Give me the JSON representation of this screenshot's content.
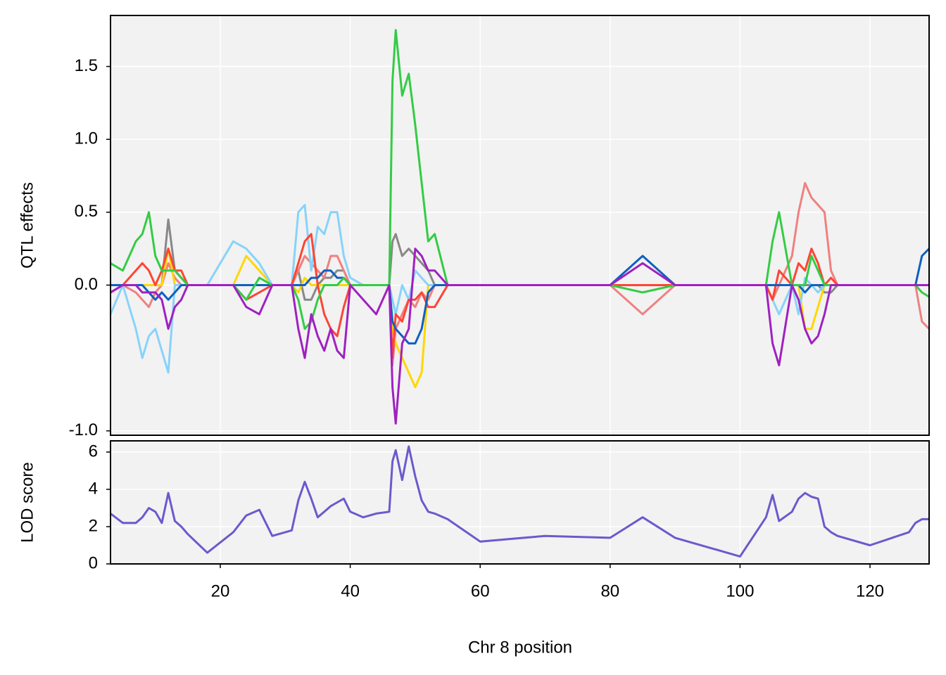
{
  "chart_data": [
    {
      "type": "line",
      "ylabel": "QTL effects",
      "x": [
        3.1,
        5,
        7,
        8,
        9,
        10,
        11,
        12,
        13,
        14,
        15,
        18,
        22,
        24,
        26,
        28,
        31,
        32,
        33,
        34,
        35,
        36,
        37,
        38,
        39,
        40,
        42,
        44,
        46,
        46.5,
        47,
        48,
        49,
        50,
        51,
        52,
        53,
        55,
        60,
        70,
        80,
        85,
        90,
        100,
        104,
        105,
        106,
        108,
        109,
        110,
        111,
        112,
        113,
        114,
        115,
        120,
        126,
        127,
        128,
        129.1
      ],
      "xlim": [
        3.1,
        129.1
      ],
      "ylim": [
        -1.03,
        1.85
      ],
      "yticks": [
        {
          "value": -1,
          "label": "-1.0"
        },
        {
          "value": 0,
          "label": "0.0"
        },
        0.5,
        {
          "value": 1,
          "label": "1.0"
        },
        1.5
      ],
      "grid": true,
      "series": [
        {
          "color": "#888888",
          "values": [
            0,
            0,
            0,
            0,
            0,
            0,
            0,
            0.45,
            0.1,
            0.05,
            0,
            0,
            0,
            0,
            0,
            0,
            0,
            0.1,
            -0.1,
            -0.1,
            0,
            0.05,
            0.05,
            0.1,
            0.1,
            0,
            0,
            0,
            0,
            0.3,
            0.35,
            0.2,
            0.25,
            0.2,
            0.15,
            0.1,
            0,
            0,
            0,
            0,
            0,
            0,
            0,
            0,
            0,
            0,
            0,
            0,
            0,
            0,
            0,
            0,
            -0.05,
            -0.05,
            0,
            0,
            0,
            0,
            0,
            0
          ]
        },
        {
          "color": "#f08080",
          "values": [
            0,
            0,
            -0.05,
            -0.1,
            -0.15,
            -0.05,
            0,
            0.15,
            0.05,
            0,
            0,
            0,
            0,
            0,
            0,
            0,
            0,
            0.1,
            0.2,
            0.15,
            0.1,
            0.05,
            0.2,
            0.2,
            0.1,
            0,
            0,
            0,
            0,
            -0.55,
            -0.3,
            -0.2,
            -0.1,
            -0.15,
            -0.05,
            -0.1,
            0,
            0,
            0,
            0,
            0,
            -0.2,
            0,
            0,
            0,
            -0.1,
            0,
            0.2,
            0.5,
            0.7,
            0.6,
            0.55,
            0.5,
            0.1,
            0,
            0,
            0,
            0,
            -0.25,
            -0.3
          ]
        },
        {
          "color": "#ffd700",
          "values": [
            0,
            0,
            0,
            0,
            0,
            0,
            0,
            0.25,
            0,
            0,
            0,
            0,
            0,
            0.2,
            0.1,
            0,
            0,
            -0.05,
            0.05,
            0,
            0,
            0,
            0,
            0,
            0,
            0,
            0,
            0,
            0,
            -0.3,
            -0.4,
            -0.5,
            -0.6,
            -0.7,
            -0.6,
            0,
            0,
            0,
            0,
            0,
            0,
            0,
            0,
            0,
            0,
            0,
            0,
            0,
            0,
            -0.3,
            -0.3,
            -0.15,
            0,
            0,
            0,
            0,
            0,
            0,
            0,
            0
          ]
        },
        {
          "color": "#87d3fa",
          "values": [
            -0.2,
            0,
            -0.3,
            -0.5,
            -0.35,
            -0.3,
            -0.45,
            -0.6,
            0,
            0,
            0,
            0,
            0.3,
            0.25,
            0.15,
            0,
            0,
            0.5,
            0.55,
            0.1,
            0.4,
            0.35,
            0.5,
            0.5,
            0.2,
            0.05,
            0,
            0,
            0,
            -0.1,
            -0.2,
            0,
            -0.1,
            0.1,
            0.05,
            0,
            0,
            0,
            0,
            0,
            0,
            0,
            0,
            0,
            0,
            -0.1,
            -0.2,
            0,
            -0.2,
            0.05,
            0,
            -0.05,
            0,
            0,
            0,
            0,
            0,
            0,
            0,
            0
          ]
        },
        {
          "color": "#ff4433",
          "values": [
            -0.05,
            0,
            0.1,
            0.15,
            0.1,
            0,
            0.1,
            0.25,
            0.1,
            0.1,
            0,
            0,
            0,
            -0.1,
            -0.05,
            0,
            0,
            0.15,
            0.3,
            0.35,
            0,
            -0.2,
            -0.3,
            -0.35,
            -0.15,
            0,
            0,
            0,
            0,
            -0.5,
            -0.2,
            -0.25,
            -0.1,
            -0.1,
            -0.05,
            -0.15,
            -0.15,
            0,
            0,
            0,
            0,
            0,
            0,
            0,
            0,
            -0.1,
            0.1,
            0,
            0.15,
            0.1,
            0.25,
            0.15,
            0,
            0.05,
            0,
            0,
            0,
            0,
            0,
            0
          ]
        },
        {
          "color": "#1060c0",
          "values": [
            0,
            0,
            0,
            0,
            -0.05,
            -0.1,
            -0.05,
            -0.1,
            -0.05,
            0,
            0,
            0,
            0,
            0,
            0,
            0,
            0,
            0,
            0,
            0.05,
            0.05,
            0.1,
            0.1,
            0.05,
            0.05,
            0,
            0,
            0,
            0,
            -0.25,
            -0.3,
            -0.35,
            -0.4,
            -0.4,
            -0.3,
            -0.05,
            0,
            0,
            0,
            0,
            0,
            0.2,
            0,
            0,
            0,
            0,
            0,
            0,
            0,
            -0.05,
            0,
            0,
            0,
            0,
            0,
            0,
            0,
            0,
            0.2,
            0.25
          ]
        },
        {
          "color": "#33cc44",
          "values": [
            0.15,
            0.1,
            0.3,
            0.35,
            0.5,
            0.2,
            0.1,
            0.1,
            0.1,
            0.05,
            0,
            0,
            0,
            -0.1,
            0.05,
            0,
            0,
            -0.1,
            -0.3,
            -0.25,
            -0.1,
            0,
            0,
            0,
            0.05,
            0,
            0,
            0,
            0,
            1.4,
            1.75,
            1.3,
            1.45,
            1.1,
            0.7,
            0.3,
            0.35,
            0,
            0,
            0,
            0,
            -0.05,
            0,
            0,
            0,
            0.3,
            0.5,
            0,
            0,
            0,
            0.2,
            0.1,
            0,
            0,
            0,
            0,
            0,
            0,
            -0.05,
            -0.08
          ]
        },
        {
          "color": "#a020c0",
          "values": [
            -0.05,
            0,
            0,
            -0.05,
            -0.05,
            -0.05,
            -0.1,
            -0.3,
            -0.15,
            -0.1,
            0,
            0,
            0,
            -0.15,
            -0.2,
            0,
            0,
            -0.3,
            -0.5,
            -0.2,
            -0.35,
            -0.45,
            -0.3,
            -0.45,
            -0.5,
            0,
            -0.1,
            -0.2,
            0,
            -0.7,
            -0.95,
            -0.4,
            -0.3,
            0.25,
            0.2,
            0.1,
            0.1,
            0,
            0,
            0,
            0,
            0.15,
            0,
            0,
            0,
            -0.4,
            -0.55,
            0,
            -0.1,
            -0.3,
            -0.4,
            -0.35,
            -0.2,
            0,
            0,
            0,
            0,
            0,
            0,
            0
          ]
        }
      ]
    },
    {
      "type": "line",
      "ylabel": "LOD score",
      "xlabel": "Chr 8 position",
      "x": [
        3.1,
        5,
        7,
        8,
        9,
        10,
        11,
        12,
        13,
        14,
        15,
        18,
        22,
        24,
        26,
        28,
        31,
        32,
        33,
        34,
        35,
        36,
        37,
        38,
        39,
        40,
        42,
        44,
        46,
        46.5,
        47,
        48,
        49,
        50,
        51,
        52,
        53,
        55,
        60,
        70,
        80,
        85,
        90,
        100,
        104,
        105,
        106,
        108,
        109,
        110,
        111,
        112,
        113,
        114,
        115,
        120,
        126,
        127,
        128,
        129.1
      ],
      "xlim": [
        3.1,
        129.1
      ],
      "ylim": [
        0,
        6.6
      ],
      "xticks": [
        20,
        40,
        60,
        80,
        100,
        120
      ],
      "yticks": [
        0,
        2,
        4,
        6
      ],
      "grid": true,
      "series": [
        {
          "color": "#6a5acd",
          "values": [
            2.7,
            2.2,
            2.2,
            2.5,
            3,
            2.8,
            2.2,
            3.8,
            2.3,
            2,
            1.6,
            0.6,
            1.7,
            2.6,
            2.9,
            1.5,
            1.8,
            3.4,
            4.4,
            3.5,
            2.5,
            2.8,
            3.1,
            3.3,
            3.5,
            2.8,
            2.5,
            2.7,
            2.8,
            5.5,
            6.1,
            4.5,
            6.3,
            4.7,
            3.4,
            2.8,
            2.7,
            2.4,
            1.2,
            1.5,
            1.4,
            2.5,
            1.4,
            0.4,
            2.5,
            3.7,
            2.3,
            2.8,
            3.5,
            3.8,
            3.6,
            3.5,
            2,
            1.7,
            1.5,
            1,
            1.7,
            2.2,
            2.4,
            2.4
          ]
        }
      ]
    }
  ]
}
